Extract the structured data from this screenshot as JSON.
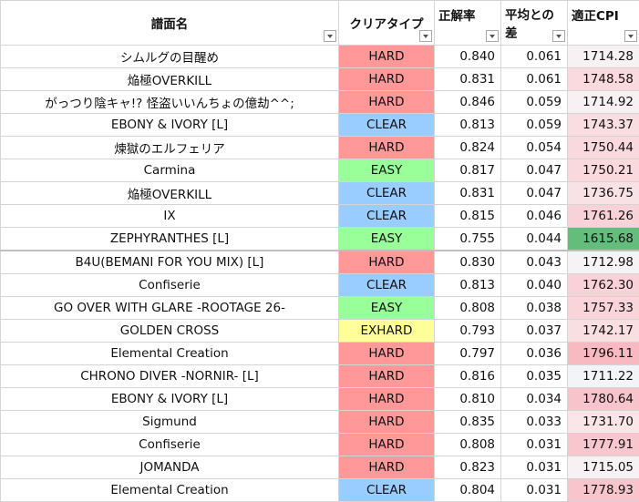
{
  "headers": {
    "title": "譜面名",
    "clear_type": "クリアタイプ",
    "accuracy": "正解率",
    "diff_line1": "平均との",
    "diff_line2": "差",
    "cpi": "適正CPI"
  },
  "colors": {
    "HARD": "#ff9999",
    "CLEAR": "#99ccff",
    "EASY": "#99ff99",
    "EXHARD": "#ffff99"
  },
  "rows": [
    {
      "title": "シムルグの目醒め",
      "clear": "HARD",
      "accuracy": "0.840",
      "diff": "0.061",
      "cpi": "1714.28",
      "cpi_bg": "#f7f1f3"
    },
    {
      "title": "焔極OVERKILL",
      "clear": "HARD",
      "accuracy": "0.831",
      "diff": "0.061",
      "cpi": "1748.58",
      "cpi_bg": "#fadadf"
    },
    {
      "title": "がっつり陰キャ!? 怪盗いいんちょの億劫^^;",
      "clear": "HARD",
      "accuracy": "0.846",
      "diff": "0.059",
      "cpi": "1714.92",
      "cpi_bg": "#f7f1f3"
    },
    {
      "title": "EBONY & IVORY [L]",
      "clear": "CLEAR",
      "accuracy": "0.813",
      "diff": "0.059",
      "cpi": "1743.37",
      "cpi_bg": "#f9dde1"
    },
    {
      "title": "煉獄のエルフェリア",
      "clear": "HARD",
      "accuracy": "0.824",
      "diff": "0.054",
      "cpi": "1750.44",
      "cpi_bg": "#fad9de"
    },
    {
      "title": "Carmina",
      "clear": "EASY",
      "accuracy": "0.817",
      "diff": "0.047",
      "cpi": "1750.21",
      "cpi_bg": "#fad9de"
    },
    {
      "title": "焔極OVERKILL",
      "clear": "CLEAR",
      "accuracy": "0.831",
      "diff": "0.047",
      "cpi": "1736.75",
      "cpi_bg": "#f9e2e6"
    },
    {
      "title": "IX",
      "clear": "CLEAR",
      "accuracy": "0.815",
      "diff": "0.046",
      "cpi": "1761.26",
      "cpi_bg": "#f9d2d7"
    },
    {
      "title": "ZEPHYRANTHES [L]",
      "clear": "EASY",
      "accuracy": "0.755",
      "diff": "0.044",
      "cpi": "1615.68",
      "cpi_bg": "#63be7b"
    },
    {
      "title": "B4U(BEMANI FOR YOU MIX) [L]",
      "clear": "HARD",
      "accuracy": "0.830",
      "diff": "0.043",
      "cpi": "1712.98",
      "cpi_bg": "#f5f3f5"
    },
    {
      "title": "Confiserie",
      "clear": "CLEAR",
      "accuracy": "0.813",
      "diff": "0.040",
      "cpi": "1762.30",
      "cpi_bg": "#f9d1d6"
    },
    {
      "title": "GO OVER WITH GLARE -ROOTAGE 26-",
      "clear": "EASY",
      "accuracy": "0.808",
      "diff": "0.038",
      "cpi": "1757.33",
      "cpi_bg": "#f9d4d9"
    },
    {
      "title": "GOLDEN CROSS",
      "clear": "EXHARD",
      "accuracy": "0.793",
      "diff": "0.037",
      "cpi": "1742.17",
      "cpi_bg": "#f9dee2"
    },
    {
      "title": "Elemental Creation",
      "clear": "HARD",
      "accuracy": "0.797",
      "diff": "0.036",
      "cpi": "1796.11",
      "cpi_bg": "#f8b9c1"
    },
    {
      "title": "CHRONO DIVER -NORNIR- [L]",
      "clear": "HARD",
      "accuracy": "0.816",
      "diff": "0.035",
      "cpi": "1711.22",
      "cpi_bg": "#f3f4f7"
    },
    {
      "title": "EBONY & IVORY [L]",
      "clear": "HARD",
      "accuracy": "0.810",
      "diff": "0.034",
      "cpi": "1780.64",
      "cpi_bg": "#f8c4cb"
    },
    {
      "title": "Sigmund",
      "clear": "HARD",
      "accuracy": "0.835",
      "diff": "0.033",
      "cpi": "1731.70",
      "cpi_bg": "#fae5e8"
    },
    {
      "title": "Confiserie",
      "clear": "HARD",
      "accuracy": "0.808",
      "diff": "0.031",
      "cpi": "1777.91",
      "cpi_bg": "#f8c6cd"
    },
    {
      "title": "JOMANDA",
      "clear": "HARD",
      "accuracy": "0.823",
      "diff": "0.031",
      "cpi": "1715.05",
      "cpi_bg": "#f7f1f3"
    },
    {
      "title": "Elemental Creation",
      "clear": "CLEAR",
      "accuracy": "0.804",
      "diff": "0.031",
      "cpi": "1778.93",
      "cpi_bg": "#f8c5cc"
    }
  ]
}
